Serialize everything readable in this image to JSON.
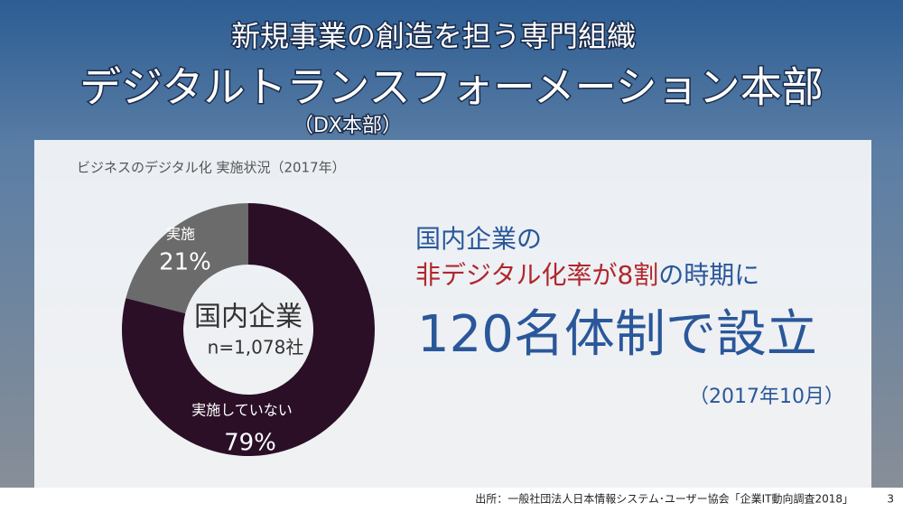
{
  "header": {
    "title": "新規事業の創造を担う専門組織",
    "department": "デジタルトランスフォーメーション本部",
    "abbreviation": "（DX本部）"
  },
  "chart_data": {
    "type": "donut",
    "title": "ビジネスのデジタル化 実施状況（2017年）",
    "categories": [
      "実施",
      "実施していない"
    ],
    "values": [
      21,
      79
    ],
    "value_labels": [
      "21%",
      "79%"
    ],
    "colors": [
      "#6b6b6b",
      "#2b0f27"
    ],
    "center_title": "国内企業",
    "center_note": "n=1,078社"
  },
  "message": {
    "line1": "国内企業の",
    "line2_highlight": "非デジタル化率が8割",
    "line2_rest": "の時期に",
    "headline": "120名体制で設立",
    "date": "（2017年10月）"
  },
  "footer": {
    "source": "出所：一般社団法人日本情報システム･ユーザー協会「企業IT動向調査2018」",
    "page": "3"
  }
}
